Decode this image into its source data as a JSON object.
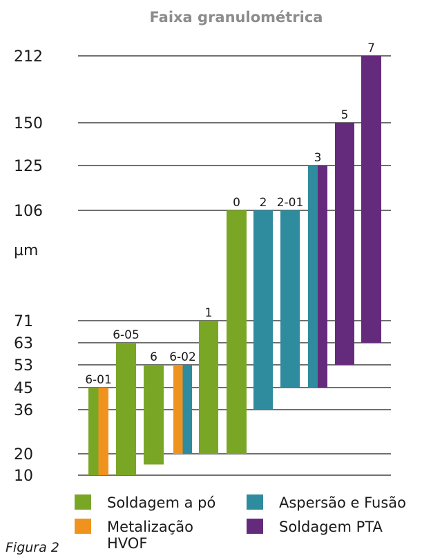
{
  "chart_data": {
    "type": "bar",
    "subtype": "floating-range",
    "title": "Faixa granulométrica",
    "unit_label": "µm",
    "y_ticks": [
      10,
      20,
      36,
      45,
      53,
      63,
      71,
      106,
      125,
      150,
      212
    ],
    "grid": true,
    "legend_placement": "bottom",
    "series": [
      {
        "name": "Soldagem a pó",
        "color": "#7aa626"
      },
      {
        "name": "Metalização HVOF",
        "name_lines": [
          "Metalização",
          "HVOF"
        ],
        "color": "#f0931e"
      },
      {
        "name": "Aspersão e Fusão",
        "color": "#2f8b9e"
      },
      {
        "name": "Soldagem PTA",
        "color": "#642b7c"
      }
    ],
    "groups": [
      {
        "label": "6-01",
        "segments": [
          {
            "series": "Soldagem a pó",
            "low": 10,
            "high": 45
          },
          {
            "series": "Metalização HVOF",
            "low": 10,
            "high": 45
          }
        ]
      },
      {
        "label": "6-05",
        "segments": [
          {
            "series": "Soldagem a pó",
            "low": 10,
            "high": 63
          }
        ]
      },
      {
        "label": "6",
        "segments": [
          {
            "series": "Soldagem a pó",
            "low": 15,
            "high": 53
          }
        ]
      },
      {
        "label": "6-02",
        "segments": [
          {
            "series": "Metalização HVOF",
            "low": 20,
            "high": 53
          },
          {
            "series": "Aspersão e Fusão",
            "low": 20,
            "high": 53
          }
        ]
      },
      {
        "label": "1",
        "segments": [
          {
            "series": "Soldagem a pó",
            "low": 20,
            "high": 71
          }
        ]
      },
      {
        "label": "0",
        "segments": [
          {
            "series": "Soldagem a pó",
            "low": 20,
            "high": 106
          }
        ]
      },
      {
        "label": "2",
        "segments": [
          {
            "series": "Aspersão e Fusão",
            "low": 36,
            "high": 106
          }
        ]
      },
      {
        "label": "2-01",
        "segments": [
          {
            "series": "Aspersão e Fusão",
            "low": 45,
            "high": 106
          }
        ]
      },
      {
        "label": "3",
        "segments": [
          {
            "series": "Aspersão e Fusão",
            "low": 45,
            "high": 125
          },
          {
            "series": "Soldagem PTA",
            "low": 45,
            "high": 125
          }
        ]
      },
      {
        "label": "5",
        "segments": [
          {
            "series": "Soldagem PTA",
            "low": 53,
            "high": 150
          }
        ]
      },
      {
        "label": "7",
        "segments": [
          {
            "series": "Soldagem PTA",
            "low": 63,
            "high": 212
          }
        ]
      }
    ]
  },
  "caption": "Figura 2"
}
